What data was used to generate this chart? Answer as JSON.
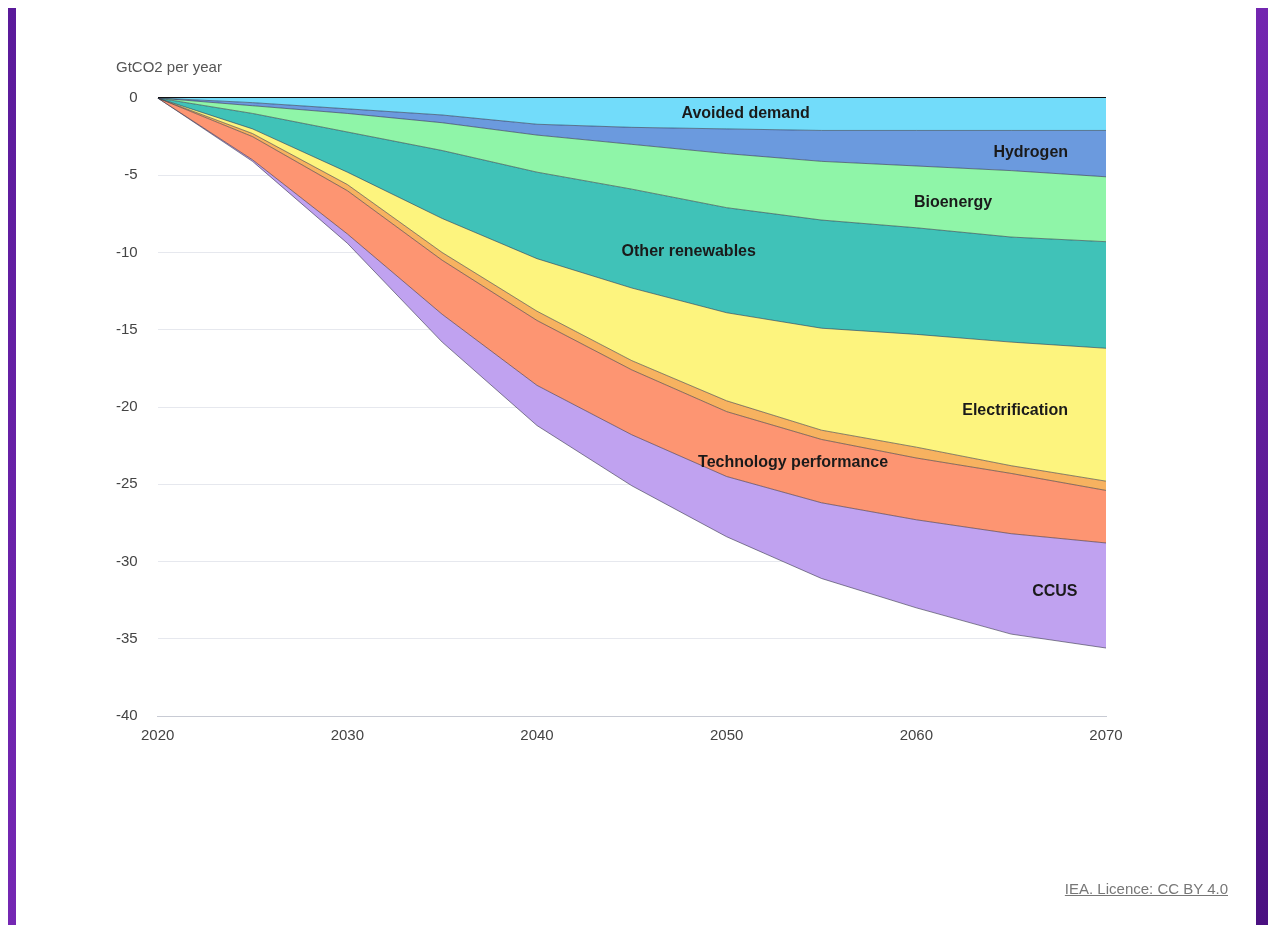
{
  "chart_data": {
    "type": "area",
    "ylabel": "GtCO2 per year",
    "stacked": true,
    "x": [
      2020,
      2025,
      2030,
      2035,
      2040,
      2045,
      2050,
      2055,
      2060,
      2065,
      2070
    ],
    "series": [
      {
        "name": "Avoided demand",
        "color": "#72dcfa",
        "values": [
          0,
          -0.3,
          -0.7,
          -1.1,
          -1.7,
          -1.9,
          -2.0,
          -2.1,
          -2.1,
          -2.1,
          -2.1
        ]
      },
      {
        "name": "Hydrogen",
        "color": "#6b9ade",
        "values": [
          0,
          -0.2,
          -0.3,
          -0.5,
          -0.7,
          -1.1,
          -1.6,
          -2.0,
          -2.3,
          -2.6,
          -3.0
        ]
      },
      {
        "name": "Bioenergy",
        "color": "#8ff5a8",
        "values": [
          0,
          -0.5,
          -1.2,
          -1.8,
          -2.4,
          -2.9,
          -3.5,
          -3.8,
          -4.0,
          -4.3,
          -4.2
        ]
      },
      {
        "name": "Other renewables",
        "color": "#40c2b8",
        "values": [
          0,
          -1.0,
          -2.6,
          -4.4,
          -5.6,
          -6.4,
          -6.8,
          -7.0,
          -6.9,
          -6.8,
          -6.9
        ]
      },
      {
        "name": "Electrification",
        "color": "#fdf47e",
        "values": [
          0,
          -0.3,
          -0.8,
          -2.2,
          -3.4,
          -4.7,
          -5.7,
          -6.6,
          -7.3,
          -8.0,
          -8.6
        ]
      },
      {
        "color": "#f7b260",
        "values": [
          0,
          -0.2,
          -0.4,
          -0.5,
          -0.6,
          -0.6,
          -0.7,
          -0.6,
          -0.7,
          -0.5,
          -0.6
        ]
      },
      {
        "name": "Technology performance",
        "color": "#fd9572",
        "values": [
          0,
          -1.5,
          -2.8,
          -3.5,
          -4.2,
          -4.2,
          -4.2,
          -4.1,
          -4.0,
          -3.9,
          -3.4
        ]
      },
      {
        "name": "CCUS",
        "color": "#c0a2f0",
        "values": [
          0,
          -0.1,
          -0.6,
          -1.8,
          -2.6,
          -3.3,
          -3.9,
          -4.9,
          -5.7,
          -6.5,
          -6.8
        ]
      }
    ],
    "xlim": [
      2020,
      2070
    ],
    "xticks": [
      2020,
      2030,
      2040,
      2050,
      2060,
      2070
    ],
    "ylim": [
      -40,
      0
    ],
    "yticks": [
      -40,
      -35,
      -30,
      -25,
      -20,
      -15,
      -10,
      -5,
      0
    ],
    "grid": "y",
    "legend": false,
    "annotations": [
      "IEA. Licence: CC BY 4.0"
    ]
  }
}
